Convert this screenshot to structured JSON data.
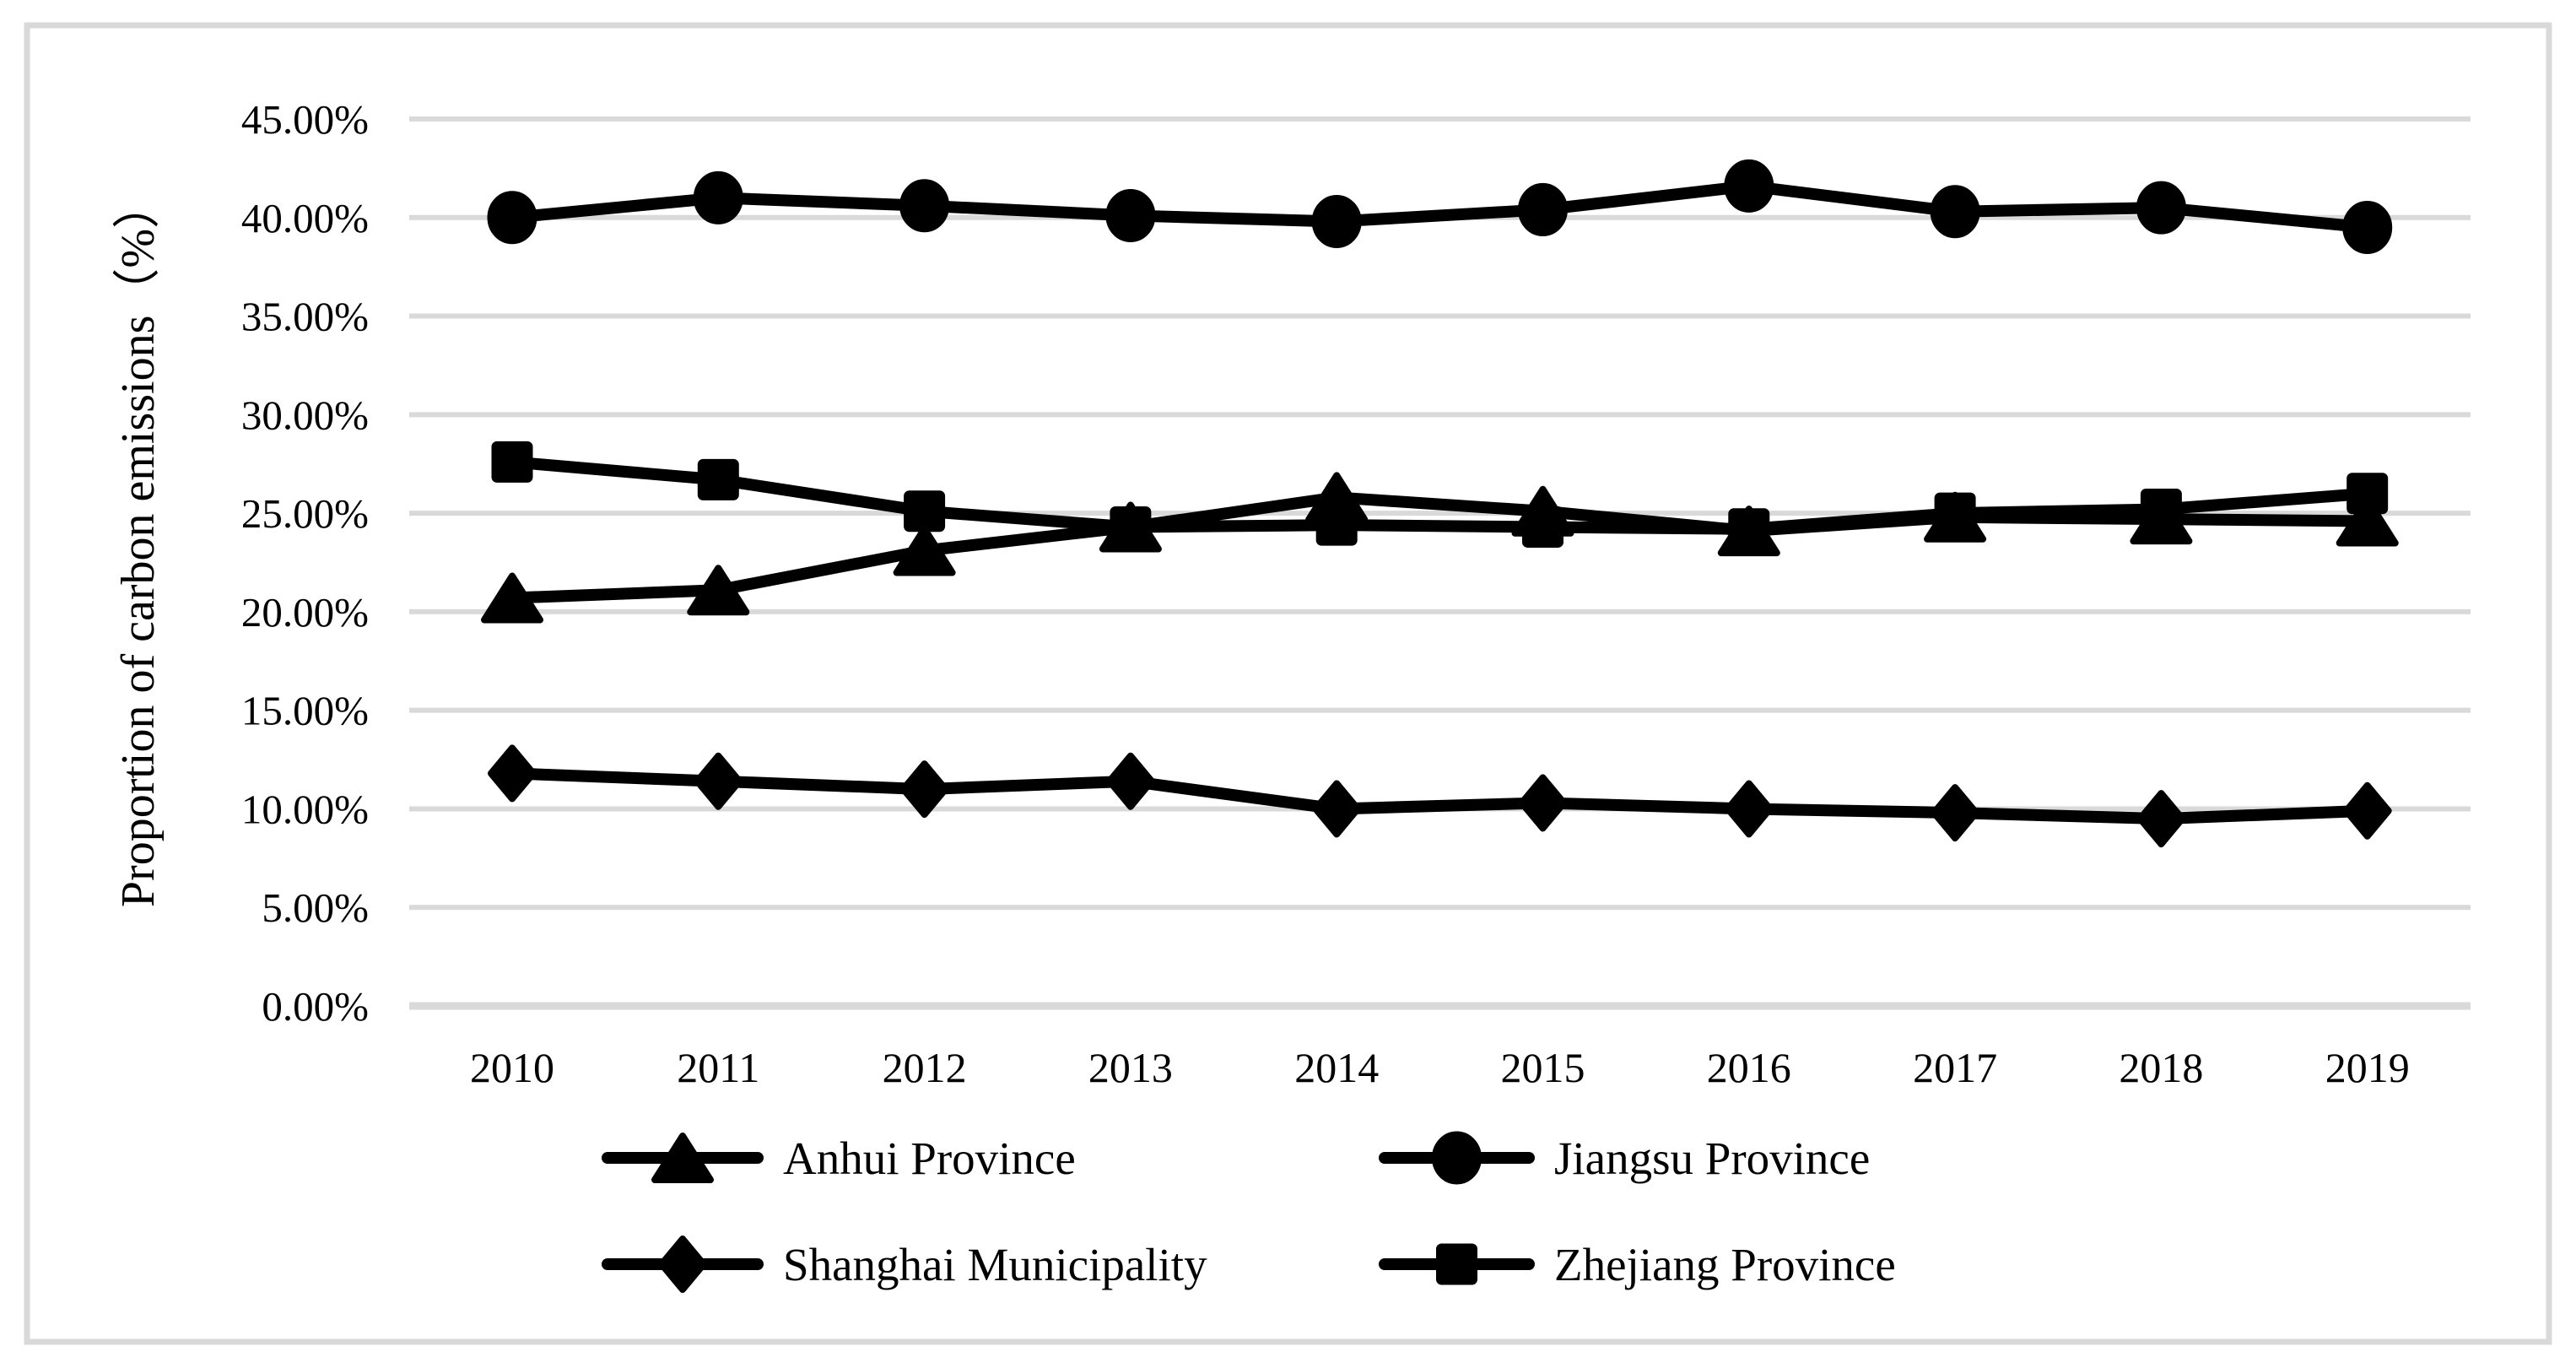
{
  "figure": {
    "background": "#ffffff",
    "border_color": "#d9d9d9",
    "text_color": "#000000"
  },
  "chart_data": {
    "type": "line",
    "title": "",
    "xlabel": "",
    "ylabel": "Proportion of carbon emissions（%）",
    "categories": [
      "2010",
      "2011",
      "2012",
      "2013",
      "2014",
      "2015",
      "2016",
      "2017",
      "2018",
      "2019"
    ],
    "series": [
      {
        "name": "Anhui Province",
        "marker": "triangle",
        "color": "#000000",
        "values": [
          20.7,
          21.1,
          23.1,
          24.3,
          25.8,
          25.1,
          24.1,
          24.8,
          24.7,
          24.6
        ]
      },
      {
        "name": "Jiangsu Province",
        "marker": "circle",
        "color": "#000000",
        "values": [
          40.0,
          41.0,
          40.6,
          40.1,
          39.8,
          40.4,
          41.6,
          40.3,
          40.5,
          39.5
        ]
      },
      {
        "name": "Shanghai Municipality",
        "marker": "diamond",
        "color": "#000000",
        "values": [
          11.8,
          11.4,
          11.0,
          11.4,
          10.0,
          10.3,
          10.0,
          9.8,
          9.5,
          9.9
        ]
      },
      {
        "name": "Zhejiang Province",
        "marker": "square",
        "color": "#000000",
        "values": [
          27.6,
          26.7,
          25.1,
          24.3,
          24.4,
          24.3,
          24.2,
          25.0,
          25.2,
          26.0
        ]
      }
    ],
    "ylim": [
      0,
      45
    ],
    "yticks": [
      {
        "value": 0,
        "label": "0.00%"
      },
      {
        "value": 5,
        "label": "5.00%"
      },
      {
        "value": 10,
        "label": "10.00%"
      },
      {
        "value": 15,
        "label": "15.00%"
      },
      {
        "value": 20,
        "label": "20.00%"
      },
      {
        "value": 25,
        "label": "25.00%"
      },
      {
        "value": 30,
        "label": "30.00%"
      },
      {
        "value": 35,
        "label": "35.00%"
      },
      {
        "value": 40,
        "label": "40.00%"
      },
      {
        "value": 45,
        "label": "45.00%"
      }
    ],
    "grid": true,
    "gridline_color": "#d9d9d9",
    "series_color": "#000000",
    "legend_position": "bottom"
  }
}
